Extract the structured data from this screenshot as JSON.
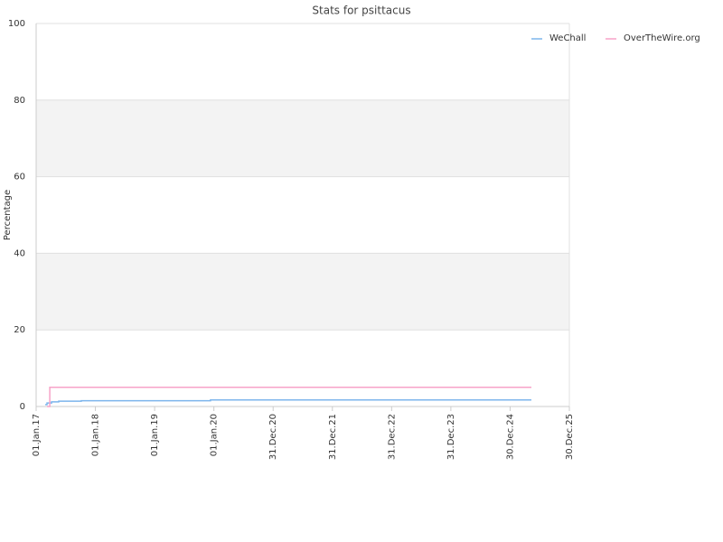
{
  "chart_data": {
    "type": "line",
    "title": "Stats for psittacus",
    "y_label": "Percentage",
    "xlim": [
      "2017-01-01",
      "2025-12-30"
    ],
    "xticks": [
      {
        "value": "2017-01-01",
        "label": "01.Jan.17"
      },
      {
        "value": "2018-01-01",
        "label": "01.Jan.18"
      },
      {
        "value": "2019-01-01",
        "label": "01.Jan.19"
      },
      {
        "value": "2020-01-01",
        "label": "01.Jan.20"
      },
      {
        "value": "2020-12-31",
        "label": "31.Dec.20"
      },
      {
        "value": "2021-12-31",
        "label": "31.Dec.21"
      },
      {
        "value": "2022-12-31",
        "label": "31.Dec.22"
      },
      {
        "value": "2023-12-31",
        "label": "31.Dec.23"
      },
      {
        "value": "2024-12-30",
        "label": "30.Dec.24"
      },
      {
        "value": "2025-12-30",
        "label": "30.Dec.25"
      }
    ],
    "ylim": [
      0,
      100
    ],
    "yticks": [
      0,
      20,
      40,
      60,
      80,
      100
    ],
    "grid": true,
    "alternate_bands": true,
    "legend": "top-right",
    "series": [
      {
        "name": "WeChall",
        "color": "#7cb5ec",
        "x": [
          "2017-02-26",
          "2017-03-09",
          "2017-03-09",
          "2017-04-06",
          "2017-04-06",
          "2017-05-20",
          "2017-05-20",
          "2017-10-06",
          "2017-10-06",
          "2019-12-11",
          "2019-12-11",
          "2025-05-10"
        ],
        "values": [
          0.5,
          0.5,
          0.9,
          0.9,
          1.2,
          1.2,
          1.4,
          1.4,
          1.5,
          1.5,
          1.7,
          1.7
        ]
      },
      {
        "name": "OverTheWire.org",
        "color": "#f7a3c8",
        "x": [
          "2017-03-09",
          "2017-03-26",
          "2017-03-26",
          "2025-05-10"
        ],
        "values": [
          0,
          0,
          5,
          5
        ]
      }
    ]
  }
}
